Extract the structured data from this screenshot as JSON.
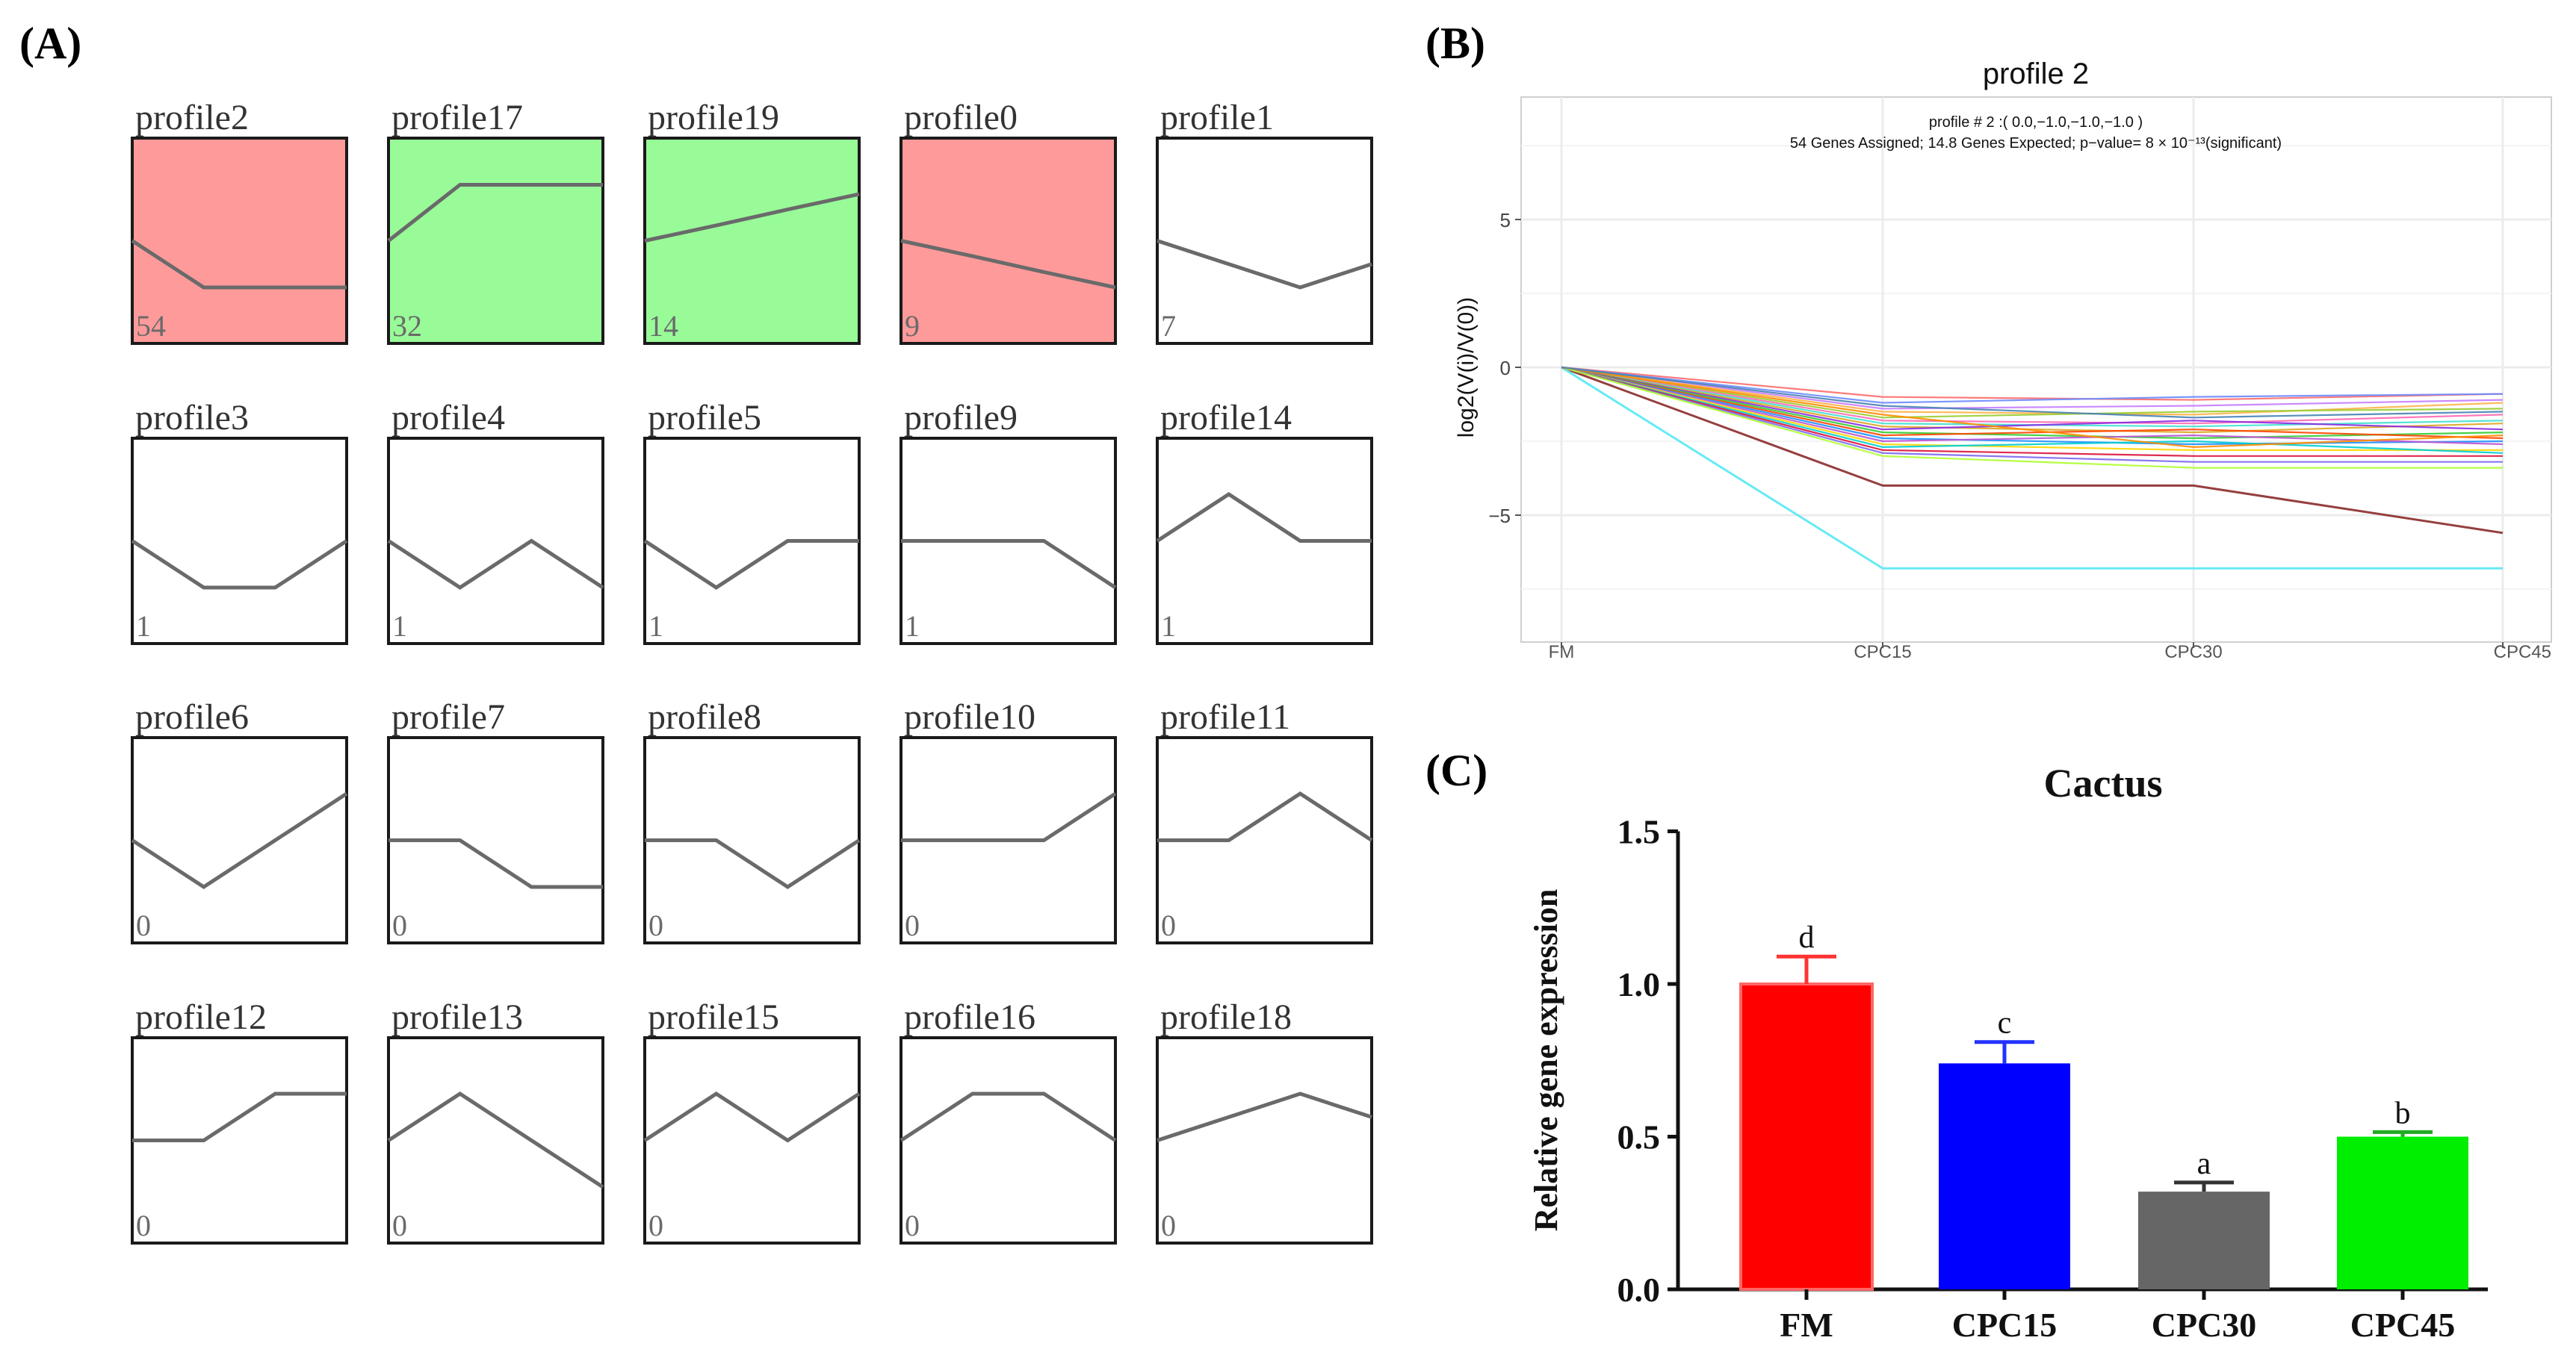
{
  "panel_labels": {
    "a": "(A)",
    "b": "(B)",
    "c": "(C)"
  },
  "colors": {
    "sig_down": "#ff9a9a",
    "sig_up": "#98fb98",
    "profile_line": "#6a6a6a",
    "grid": "#ececec",
    "brown": "#8b2a2a",
    "cyan": "#55e8f5",
    "bar_fm": "#ff0000",
    "bar_cpc15": "#0000ff",
    "bar_cpc30": "#666666",
    "bar_cpc45": "#00ee00"
  },
  "chart_data": [
    {
      "type": "line",
      "panel": "A",
      "description": "STEM model profiles",
      "x": [
        0,
        1,
        2,
        3
      ],
      "ylim": [
        -2,
        2
      ],
      "profiles": [
        {
          "name": "profile2",
          "count": "54",
          "values": [
            0,
            -1,
            -1,
            -1
          ],
          "highlight": "down"
        },
        {
          "name": "profile17",
          "count": "32",
          "values": [
            0,
            1.2,
            1.2,
            1.2
          ],
          "highlight": "up"
        },
        {
          "name": "profile19",
          "count": "14",
          "values": [
            0,
            0.33,
            0.67,
            1
          ],
          "highlight": "up"
        },
        {
          "name": "profile0",
          "count": "9",
          "values": [
            0,
            -0.33,
            -0.67,
            -1
          ],
          "highlight": "down"
        },
        {
          "name": "profile1",
          "count": "7",
          "values": [
            0,
            -0.5,
            -1,
            -0.5
          ],
          "highlight": "none"
        },
        {
          "name": "profile3",
          "count": "1",
          "values": [
            0,
            -1,
            -1,
            0
          ],
          "highlight": "none"
        },
        {
          "name": "profile4",
          "count": "1",
          "values": [
            0,
            -1,
            0,
            -1
          ],
          "highlight": "none"
        },
        {
          "name": "profile5",
          "count": "1",
          "values": [
            0,
            -1,
            0,
            0
          ],
          "highlight": "none"
        },
        {
          "name": "profile9",
          "count": "1",
          "values": [
            0,
            0,
            0,
            -1
          ],
          "highlight": "none"
        },
        {
          "name": "profile14",
          "count": "1",
          "values": [
            0,
            1,
            0,
            0
          ],
          "highlight": "none"
        },
        {
          "name": "profile6",
          "count": "0",
          "values": [
            0,
            -1,
            0,
            1
          ],
          "highlight": "none"
        },
        {
          "name": "profile7",
          "count": "0",
          "values": [
            0,
            0,
            -1,
            -1
          ],
          "highlight": "none"
        },
        {
          "name": "profile8",
          "count": "0",
          "values": [
            0,
            0,
            -1,
            0
          ],
          "highlight": "none"
        },
        {
          "name": "profile10",
          "count": "0",
          "values": [
            0,
            0,
            0,
            1
          ],
          "highlight": "none"
        },
        {
          "name": "profile11",
          "count": "0",
          "values": [
            0,
            0,
            1,
            0
          ],
          "highlight": "none"
        },
        {
          "name": "profile12",
          "count": "0",
          "values": [
            0,
            0,
            1,
            1
          ],
          "highlight": "none"
        },
        {
          "name": "profile13",
          "count": "0",
          "values": [
            0,
            1,
            0,
            -1
          ],
          "highlight": "none"
        },
        {
          "name": "profile15",
          "count": "0",
          "values": [
            0,
            1,
            0,
            1
          ],
          "highlight": "none"
        },
        {
          "name": "profile16",
          "count": "0",
          "values": [
            0,
            1,
            1,
            0
          ],
          "highlight": "none"
        },
        {
          "name": "profile18",
          "count": "0",
          "values": [
            0,
            0.5,
            1,
            0.5
          ],
          "highlight": "none"
        }
      ]
    },
    {
      "type": "line",
      "panel": "B",
      "title": "profile 2",
      "subtitle1": "profile # 2 :( 0.0,−1.0,−1.0,−1.0 )",
      "subtitle2": "54 Genes Assigned; 14.8 Genes Expected; p−value= 8 × 10⁻¹³(significant)",
      "xlabel": "",
      "ylabel": "log2(V(i)/V(0))",
      "categories": [
        "FM",
        "CPC15",
        "CPC30",
        "CPC45"
      ],
      "ylim": [
        -9,
        9
      ],
      "yticks": [
        5,
        0,
        -5
      ],
      "ytick_labels": [
        "5",
        "0",
        "−5"
      ],
      "series": [
        {
          "name": "gene-brown",
          "values": [
            0,
            -4.0,
            -4.0,
            -5.6
          ]
        },
        {
          "name": "gene-cyan",
          "values": [
            0,
            -6.8,
            -6.8,
            -6.8
          ]
        },
        {
          "name": "gene-01",
          "values": [
            0,
            -1.0,
            -1.1,
            -0.9
          ]
        },
        {
          "name": "gene-02",
          "values": [
            0,
            -1.2,
            -1.0,
            -0.9
          ]
        },
        {
          "name": "gene-03",
          "values": [
            0,
            -1.4,
            -1.3,
            -1.1
          ]
        },
        {
          "name": "gene-04",
          "values": [
            0,
            -1.5,
            -1.6,
            -1.2
          ]
        },
        {
          "name": "gene-05",
          "values": [
            0,
            -1.7,
            -1.5,
            -1.4
          ]
        },
        {
          "name": "gene-06",
          "values": [
            0,
            -1.8,
            -1.9,
            -1.6
          ]
        },
        {
          "name": "gene-07",
          "values": [
            0,
            -1.9,
            -2.0,
            -1.8
          ]
        },
        {
          "name": "gene-08",
          "values": [
            0,
            -2.0,
            -2.2,
            -1.9
          ]
        },
        {
          "name": "gene-09",
          "values": [
            0,
            -2.1,
            -1.8,
            -2.1
          ]
        },
        {
          "name": "gene-10",
          "values": [
            0,
            -2.2,
            -2.4,
            -2.2
          ]
        },
        {
          "name": "gene-11",
          "values": [
            0,
            -2.3,
            -2.1,
            -2.4
          ]
        },
        {
          "name": "gene-12",
          "values": [
            0,
            -2.4,
            -2.6,
            -2.5
          ]
        },
        {
          "name": "gene-13",
          "values": [
            0,
            -2.5,
            -2.3,
            -2.6
          ]
        },
        {
          "name": "gene-14",
          "values": [
            0,
            -2.6,
            -2.8,
            -2.8
          ]
        },
        {
          "name": "gene-15",
          "values": [
            0,
            -2.7,
            -2.5,
            -2.9
          ]
        },
        {
          "name": "gene-16",
          "values": [
            0,
            -2.8,
            -3.0,
            -3.0
          ]
        },
        {
          "name": "gene-17",
          "values": [
            0,
            -2.9,
            -3.2,
            -3.2
          ]
        },
        {
          "name": "gene-18",
          "values": [
            0,
            -3.0,
            -3.4,
            -3.4
          ]
        },
        {
          "name": "gene-19",
          "values": [
            0,
            -1.6,
            -2.7,
            -2.3
          ]
        },
        {
          "name": "gene-20",
          "values": [
            0,
            -1.3,
            -1.7,
            -1.5
          ]
        }
      ]
    },
    {
      "type": "bar",
      "panel": "C",
      "title": "Cactus",
      "xlabel": "",
      "ylabel": "Relative gene expression",
      "categories": [
        "FM",
        "CPC15",
        "CPC30",
        "CPC45"
      ],
      "values": [
        1.0,
        0.74,
        0.32,
        0.5
      ],
      "errors": [
        0.09,
        0.07,
        0.03,
        0.015
      ],
      "letters": [
        "d",
        "c",
        "a",
        "b"
      ],
      "ylim": [
        0,
        1.5
      ],
      "yticks": [
        0,
        0.5,
        1.0,
        1.5
      ],
      "ytick_labels": [
        "0.0",
        "0.5",
        "1.0",
        "1.5"
      ]
    }
  ]
}
